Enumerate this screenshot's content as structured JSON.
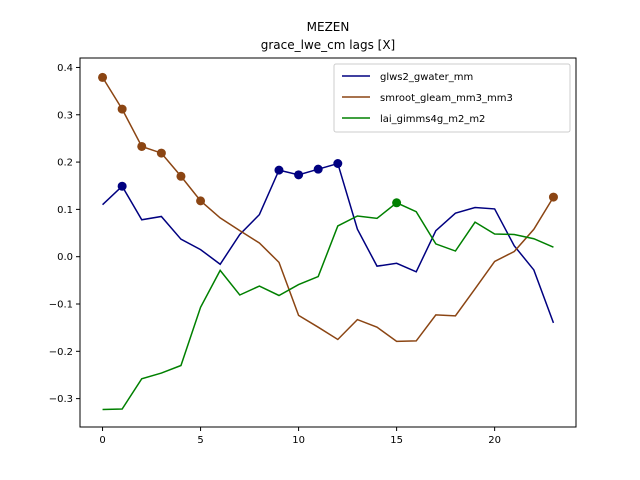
{
  "chart_data": {
    "type": "line",
    "title": "MEZEN",
    "subtitle": "grace_lwe_cm lags [X]",
    "xlabel": "",
    "ylabel": "",
    "xlim": [
      -1.15,
      24.15
    ],
    "ylim": [
      -0.36,
      0.42
    ],
    "xticks": [
      0,
      5,
      10,
      15,
      20
    ],
    "yticks": [
      -0.3,
      -0.2,
      -0.1,
      0.0,
      0.1,
      0.2,
      0.3,
      0.4
    ],
    "ytick_labels": [
      "−0.3",
      "−0.2",
      "−0.1",
      "0.0",
      "0.1",
      "0.2",
      "0.3",
      "0.4"
    ],
    "grid": false,
    "legend_position": "top-right",
    "x": [
      0,
      1,
      2,
      3,
      4,
      5,
      6,
      7,
      8,
      9,
      10,
      11,
      12,
      13,
      14,
      15,
      16,
      17,
      18,
      19,
      20,
      21,
      22,
      23
    ],
    "series": [
      {
        "name": "glws2_gwater_mm",
        "color": "#000080",
        "values": [
          0.11,
          0.149,
          0.078,
          0.085,
          0.037,
          0.015,
          -0.016,
          0.047,
          0.089,
          0.183,
          0.173,
          0.185,
          0.197,
          0.058,
          -0.02,
          -0.014,
          -0.032,
          0.055,
          0.092,
          0.104,
          0.101,
          0.023,
          -0.028,
          -0.14
        ],
        "markers": [
          1,
          9,
          10,
          11,
          12
        ]
      },
      {
        "name": "smroot_gleam_mm3_mm3",
        "color": "#8B4513",
        "values": [
          0.379,
          0.312,
          0.233,
          0.219,
          0.17,
          0.118,
          0.082,
          0.055,
          0.029,
          -0.012,
          -0.124,
          -0.149,
          -0.175,
          -0.133,
          -0.149,
          -0.179,
          -0.178,
          -0.123,
          -0.125,
          -0.068,
          -0.01,
          0.011,
          0.058,
          0.126
        ],
        "markers": [
          0,
          1,
          2,
          3,
          4,
          5,
          23
        ]
      },
      {
        "name": "lai_gimms4g_m2_m2",
        "color": "#008000",
        "values": [
          -0.323,
          -0.322,
          -0.258,
          -0.246,
          -0.23,
          -0.107,
          -0.029,
          -0.081,
          -0.062,
          -0.082,
          -0.059,
          -0.042,
          0.065,
          0.086,
          0.081,
          0.114,
          0.095,
          0.027,
          0.012,
          0.073,
          0.048,
          0.047,
          0.038,
          0.02
        ],
        "markers": [
          15
        ]
      }
    ]
  }
}
